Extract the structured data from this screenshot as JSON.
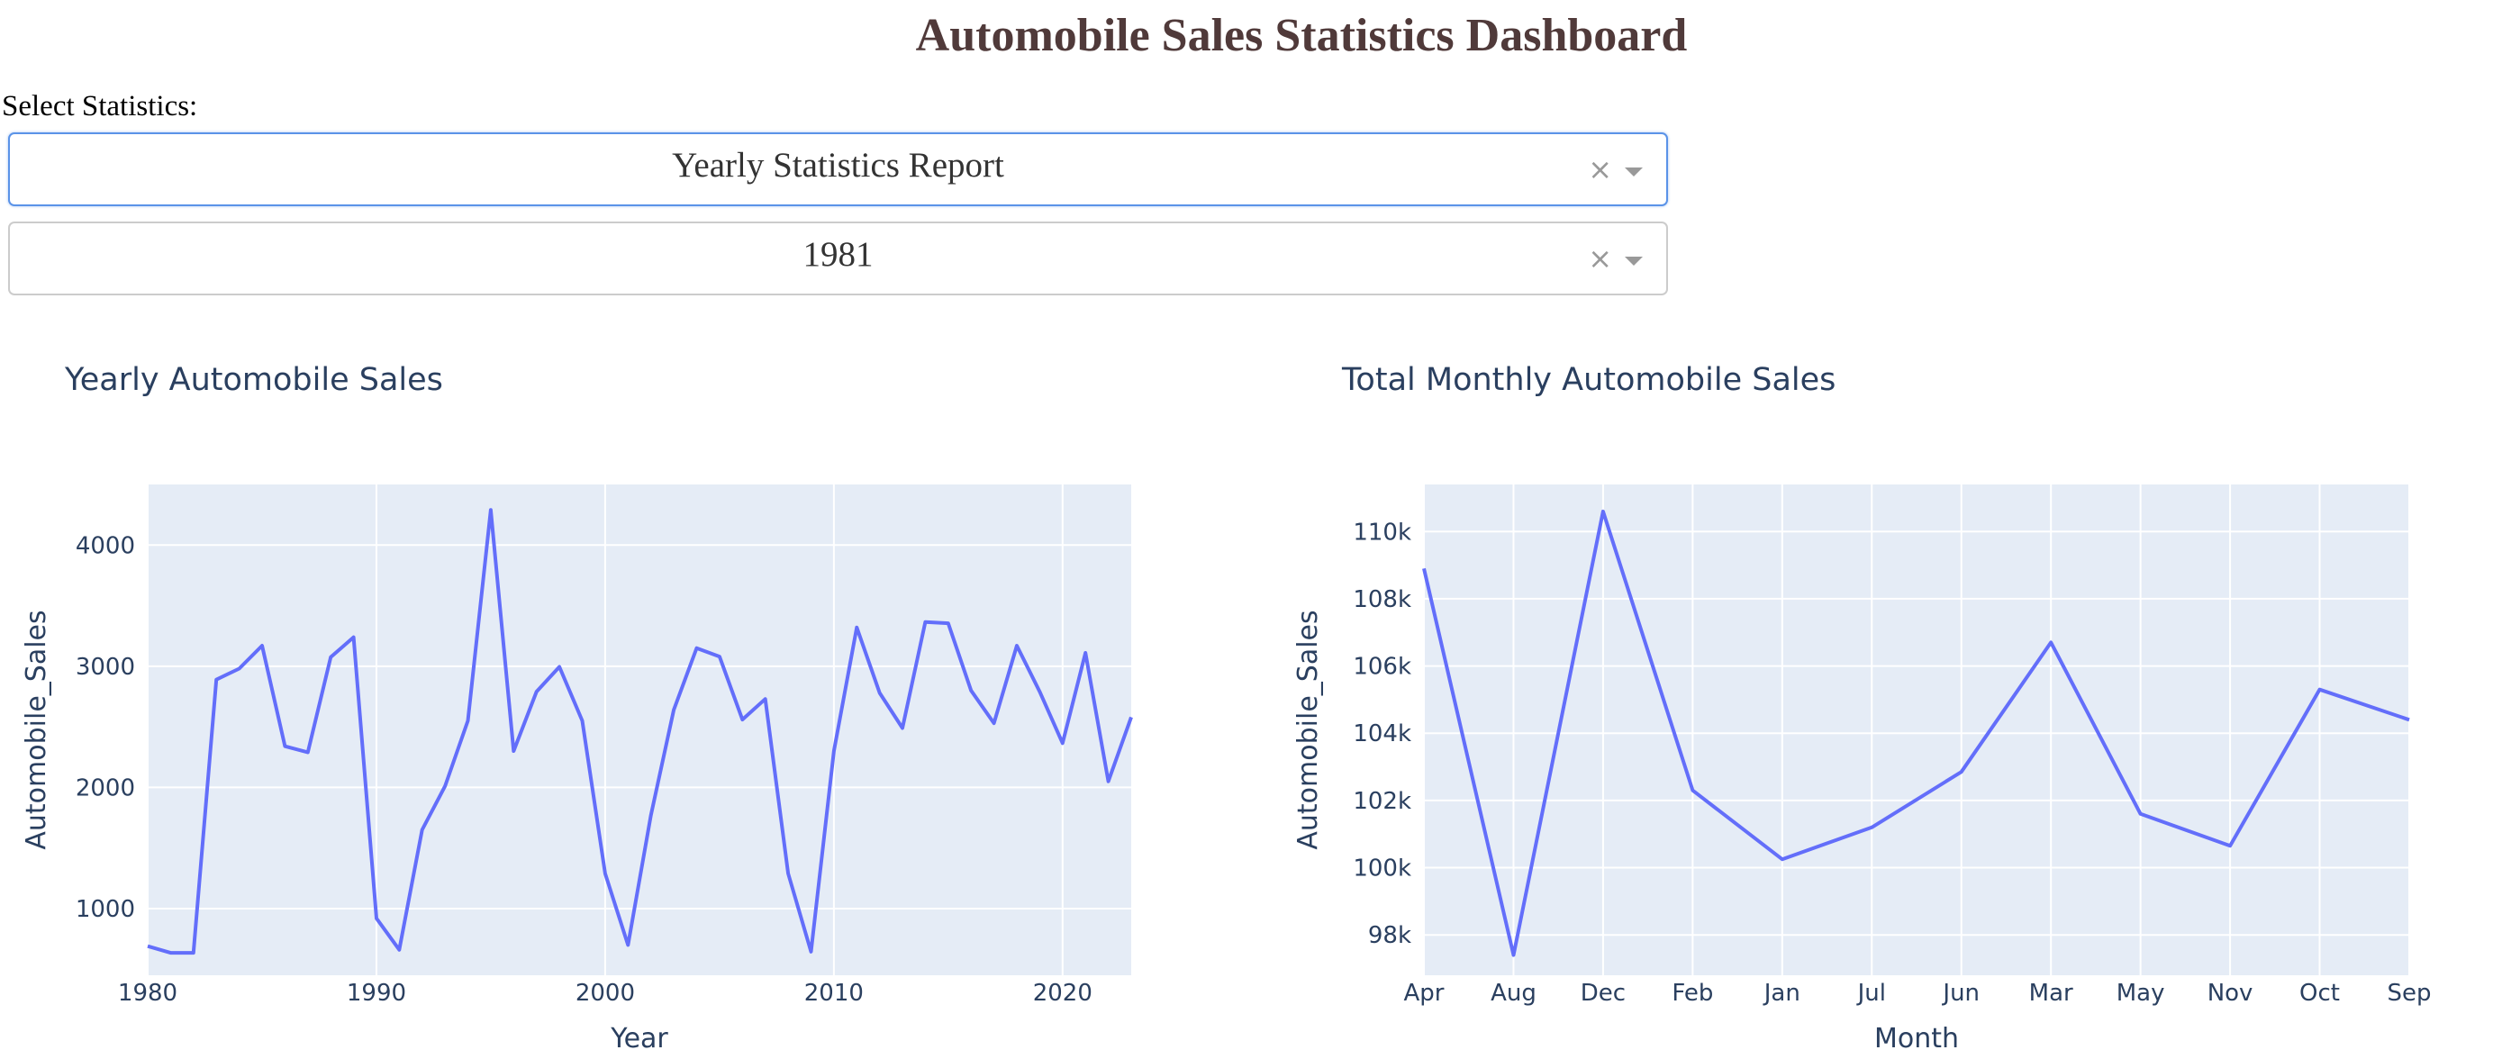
{
  "page": {
    "title": "Automobile Sales Statistics Dashboard",
    "select_label": "Select Statistics:"
  },
  "dropdowns": [
    {
      "value": "Yearly Statistics Report",
      "clear_icon": "×"
    },
    {
      "value": "1981",
      "clear_icon": "×"
    }
  ],
  "colors": {
    "title": "#503A3A",
    "line": "#636efa",
    "plot_bg": "#e5ecf6",
    "text": "#2a3f5f"
  },
  "chart_data": [
    {
      "type": "line",
      "title": "Yearly Automobile Sales",
      "xlabel": "Year",
      "ylabel": "Automobile_Sales",
      "xlim": [
        1980,
        2023
      ],
      "ylim": [
        450,
        4500
      ],
      "x_ticks": [
        1980,
        1990,
        2000,
        2010,
        2020
      ],
      "y_ticks": [
        1000,
        2000,
        3000,
        4000
      ],
      "grid": true,
      "x": [
        1980,
        1981,
        1982,
        1983,
        1984,
        1985,
        1986,
        1987,
        1988,
        1989,
        1990,
        1991,
        1992,
        1993,
        1994,
        1995,
        1996,
        1997,
        1998,
        1999,
        2000,
        2001,
        2002,
        2003,
        2004,
        2005,
        2006,
        2007,
        2008,
        2009,
        2010,
        2011,
        2012,
        2013,
        2014,
        2015,
        2016,
        2017,
        2018,
        2019,
        2020,
        2021,
        2022,
        2023
      ],
      "y": [
        690,
        635,
        635,
        2890,
        2980,
        3170,
        2340,
        2290,
        3075,
        3240,
        920,
        660,
        1650,
        2010,
        2550,
        4290,
        2300,
        2790,
        2995,
        2550,
        1290,
        700,
        1770,
        2640,
        3150,
        3080,
        2560,
        2730,
        1290,
        645,
        2300,
        3320,
        2780,
        2490,
        3365,
        3355,
        2800,
        2530,
        3170,
        2790,
        2365,
        3110,
        2050,
        2580
      ]
    },
    {
      "type": "line",
      "title": "Total Monthly Automobile Sales",
      "xlabel": "Month",
      "ylabel": "Automobile_Sales",
      "categories": [
        "Apr",
        "Aug",
        "Dec",
        "Feb",
        "Jan",
        "Jul",
        "Jun",
        "Mar",
        "May",
        "Nov",
        "Oct",
        "Sep"
      ],
      "values": [
        108900,
        97400,
        110600,
        102300,
        100250,
        101200,
        102850,
        106700,
        101600,
        100650,
        105300,
        104400
      ],
      "ylim": [
        96800,
        111400
      ],
      "y_ticks": [
        98000,
        100000,
        102000,
        104000,
        106000,
        108000,
        110000
      ],
      "y_tick_labels": [
        "98k",
        "100k",
        "102k",
        "104k",
        "106k",
        "108k",
        "110k"
      ],
      "grid": true
    }
  ]
}
